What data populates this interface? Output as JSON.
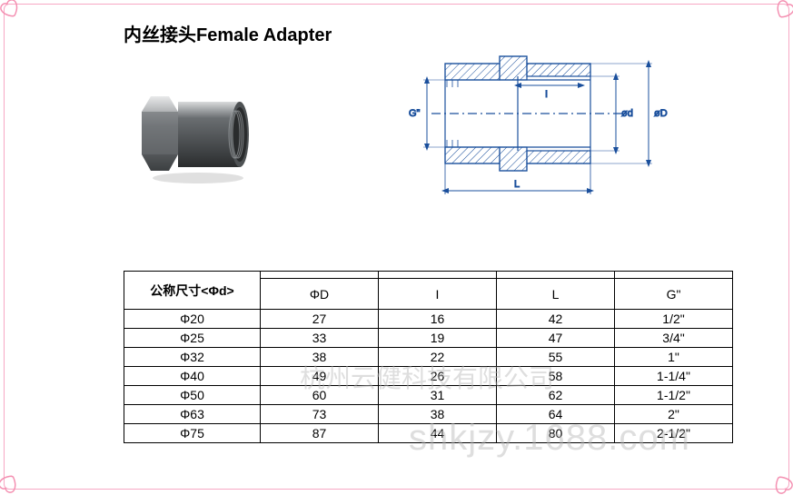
{
  "title": "内丝接头Female Adapter",
  "border_color": "#f7a8c4",
  "heart_color": "#f48fb1",
  "diagram_labels": {
    "G": "G\"",
    "I": "I",
    "L": "L",
    "od": "ød",
    "oD": "øD"
  },
  "diagram_style": {
    "stroke": "#1a4f9c",
    "hatch": "#1a4f9c",
    "bg": "#ffffff"
  },
  "product_render": {
    "body_color": "#6a6e71",
    "body_dark": "#3c3f41",
    "highlight": "#d9dbdc",
    "thread_color": "#9ea2a5"
  },
  "table": {
    "header_main": "公称尺寸<Φd>",
    "columns": [
      "ΦD",
      "I",
      "L",
      "G\""
    ],
    "rows": [
      [
        "Φ20",
        "27",
        "16",
        "42",
        "1/2\""
      ],
      [
        "Φ25",
        "33",
        "19",
        "47",
        "3/4\""
      ],
      [
        "Φ32",
        "38",
        "22",
        "55",
        "1\""
      ],
      [
        "Φ40",
        "49",
        "26",
        "58",
        "1-1/4\""
      ],
      [
        "Φ50",
        "60",
        "31",
        "62",
        "1-1/2\""
      ],
      [
        "Φ63",
        "73",
        "38",
        "64",
        "2\""
      ],
      [
        "Φ75",
        "87",
        "44",
        "80",
        "2-1/2\""
      ]
    ]
  },
  "watermarks": {
    "line1": "杭州云健科技有限公司",
    "line2": "shkjzy.1688.com"
  }
}
